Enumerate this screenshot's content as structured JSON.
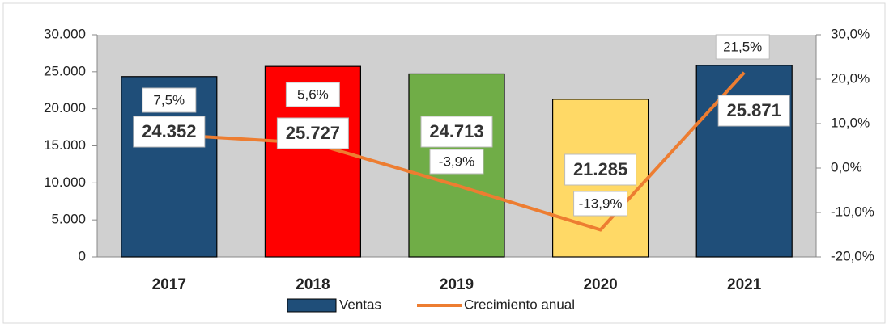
{
  "chart_data": {
    "type": "bar_line",
    "categories": [
      "2017",
      "2018",
      "2019",
      "2020",
      "2021"
    ],
    "series": [
      {
        "name": "Ventas",
        "type": "bar",
        "color": "#1f4e79",
        "colors": [
          "#1f4e79",
          "#ff0000",
          "#70ad47",
          "#ffd966",
          "#1f4e79"
        ],
        "values": [
          24352,
          25727,
          24713,
          21285,
          25871
        ],
        "value_labels": [
          "24.352",
          "25.727",
          "24.713",
          "21.285",
          "25.871"
        ]
      },
      {
        "name": "Crecimiento anual",
        "type": "line",
        "axis": "y2",
        "color": "#ed7d31",
        "values": [
          7.5,
          5.6,
          -3.9,
          -13.9,
          21.5
        ],
        "value_labels": [
          "7,5%",
          "5,6%",
          "-3,9%",
          "-13,9%",
          "21,5%"
        ]
      }
    ],
    "ylim": [
      0,
      30000
    ],
    "yticks": [
      0,
      {
        "value": 5000,
        "label": "5.000"
      },
      {
        "value": 10000,
        "label": "10.000"
      },
      {
        "value": 15000,
        "label": "15.000"
      },
      {
        "value": 20000,
        "label": "20.000"
      },
      {
        "value": 25000,
        "label": "25.000"
      },
      {
        "value": 30000,
        "label": "30.000"
      }
    ],
    "y2lim": [
      -20,
      30
    ],
    "y2ticks": [
      {
        "value": -20,
        "label": "-20,0%"
      },
      {
        "value": -10,
        "label": "-10,0%"
      },
      {
        "value": 0,
        "label": "0,0%"
      },
      {
        "value": 10,
        "label": "10,0%"
      },
      {
        "value": 20,
        "label": "20,0%"
      },
      {
        "value": 30,
        "label": "30,0%"
      }
    ],
    "legend": "bottom"
  }
}
